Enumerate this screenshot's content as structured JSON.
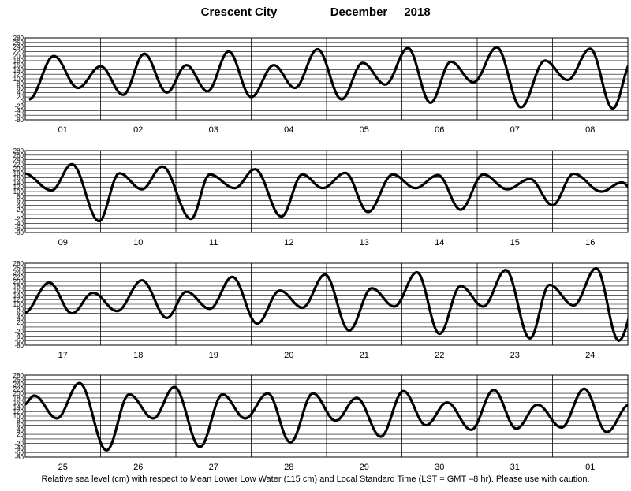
{
  "title": {
    "location": "Crescent City",
    "month": "December",
    "year": "2018"
  },
  "footnote": "Relative sea level (cm) with respect to Mean Lower Low Water (115 cm) and Local Standard Time (LST = GMT –8 hr). Please use with caution.",
  "chart_data": {
    "type": "line",
    "title": "Crescent City December 2018",
    "ylabel": "Relative sea level (cm)",
    "ylim": [
      -80,
      280
    ],
    "y_ticks": [
      280,
      260,
      240,
      220,
      200,
      180,
      160,
      140,
      120,
      100,
      80,
      60,
      40,
      20,
      0,
      -20,
      -40,
      -60,
      -80
    ],
    "grid": true,
    "line_color": "#000000",
    "panels": [
      {
        "days": [
          "01",
          "02",
          "03",
          "04",
          "05",
          "06",
          "07",
          "08"
        ],
        "tides": [
          [
            0.05,
            10
          ],
          [
            0.38,
            200
          ],
          [
            0.7,
            60
          ],
          [
            1.0,
            155
          ],
          [
            1.3,
            30
          ],
          [
            1.58,
            210
          ],
          [
            1.88,
            40
          ],
          [
            2.14,
            160
          ],
          [
            2.42,
            45
          ],
          [
            2.7,
            220
          ],
          [
            3.0,
            20
          ],
          [
            3.3,
            160
          ],
          [
            3.58,
            60
          ],
          [
            3.88,
            230
          ],
          [
            4.2,
            10
          ],
          [
            4.48,
            170
          ],
          [
            4.78,
            75
          ],
          [
            5.08,
            235
          ],
          [
            5.38,
            -5
          ],
          [
            5.65,
            175
          ],
          [
            5.95,
            85
          ],
          [
            6.26,
            238
          ],
          [
            6.58,
            -25
          ],
          [
            6.9,
            180
          ],
          [
            7.2,
            95
          ],
          [
            7.5,
            232
          ],
          [
            7.8,
            -30
          ],
          [
            8.06,
            180
          ],
          [
            8.38,
            100
          ],
          [
            8.68,
            228
          ],
          [
            8.98,
            -25
          ],
          [
            9.22,
            180
          ]
        ]
      },
      {
        "days": [
          "09",
          "10",
          "11",
          "12",
          "13",
          "14",
          "15",
          "16"
        ],
        "tides": [
          [
            -0.02,
            180
          ],
          [
            0.35,
            105
          ],
          [
            0.62,
            220
          ],
          [
            0.98,
            -30
          ],
          [
            1.25,
            180
          ],
          [
            1.55,
            110
          ],
          [
            1.82,
            210
          ],
          [
            2.2,
            -20
          ],
          [
            2.45,
            175
          ],
          [
            2.78,
            115
          ],
          [
            3.05,
            198
          ],
          [
            3.4,
            -10
          ],
          [
            3.68,
            175
          ],
          [
            3.95,
            115
          ],
          [
            4.25,
            182
          ],
          [
            4.55,
            10
          ],
          [
            4.88,
            175
          ],
          [
            5.18,
            115
          ],
          [
            5.48,
            172
          ],
          [
            5.78,
            20
          ],
          [
            6.08,
            175
          ],
          [
            6.4,
            110
          ],
          [
            6.7,
            155
          ],
          [
            7.0,
            40
          ],
          [
            7.28,
            178
          ],
          [
            7.65,
            100
          ],
          [
            7.92,
            140
          ],
          [
            8.18,
            50
          ],
          [
            8.55,
            192
          ],
          [
            8.85,
            80
          ],
          [
            9.2,
            140
          ],
          [
            9.48,
            60
          ]
        ]
      },
      {
        "days": [
          "17",
          "18",
          "19",
          "20",
          "21",
          "22",
          "23",
          "24"
        ],
        "tides": [
          [
            -0.02,
            60
          ],
          [
            0.32,
            195
          ],
          [
            0.62,
            60
          ],
          [
            0.9,
            150
          ],
          [
            1.22,
            70
          ],
          [
            1.55,
            205
          ],
          [
            1.88,
            40
          ],
          [
            2.14,
            155
          ],
          [
            2.45,
            80
          ],
          [
            2.75,
            220
          ],
          [
            3.08,
            15
          ],
          [
            3.38,
            160
          ],
          [
            3.68,
            85
          ],
          [
            3.98,
            230
          ],
          [
            4.3,
            -15
          ],
          [
            4.6,
            170
          ],
          [
            4.9,
            90
          ],
          [
            5.2,
            240
          ],
          [
            5.5,
            -30
          ],
          [
            5.78,
            180
          ],
          [
            6.08,
            90
          ],
          [
            6.38,
            250
          ],
          [
            6.7,
            -50
          ],
          [
            6.96,
            185
          ],
          [
            7.28,
            95
          ],
          [
            7.58,
            258
          ],
          [
            7.88,
            -60
          ],
          [
            8.18,
            190
          ],
          [
            8.48,
            95
          ],
          [
            8.78,
            255
          ],
          [
            9.1,
            -55
          ],
          [
            9.3,
            160
          ]
        ]
      },
      {
        "days": [
          "25",
          "26",
          "27",
          "28",
          "29",
          "30",
          "31",
          "01"
        ],
        "tides": [
          [
            -0.02,
            150
          ],
          [
            0.12,
            190
          ],
          [
            0.42,
            90
          ],
          [
            0.72,
            245
          ],
          [
            1.08,
            -50
          ],
          [
            1.38,
            195
          ],
          [
            1.7,
            90
          ],
          [
            1.98,
            228
          ],
          [
            2.32,
            -35
          ],
          [
            2.62,
            195
          ],
          [
            2.92,
            90
          ],
          [
            3.22,
            200
          ],
          [
            3.52,
            -15
          ],
          [
            3.82,
            200
          ],
          [
            4.12,
            80
          ],
          [
            4.4,
            180
          ],
          [
            4.72,
            10
          ],
          [
            5.02,
            210
          ],
          [
            5.32,
            60
          ],
          [
            5.6,
            160
          ],
          [
            5.92,
            40
          ],
          [
            6.22,
            215
          ],
          [
            6.52,
            45
          ],
          [
            6.8,
            150
          ],
          [
            7.12,
            50
          ],
          [
            7.42,
            220
          ],
          [
            7.72,
            30
          ],
          [
            8.02,
            150
          ],
          [
            8.32,
            70
          ],
          [
            8.62,
            225
          ],
          [
            8.95,
            10
          ],
          [
            9.3,
            160
          ],
          [
            9.55,
            120
          ]
        ]
      }
    ]
  }
}
